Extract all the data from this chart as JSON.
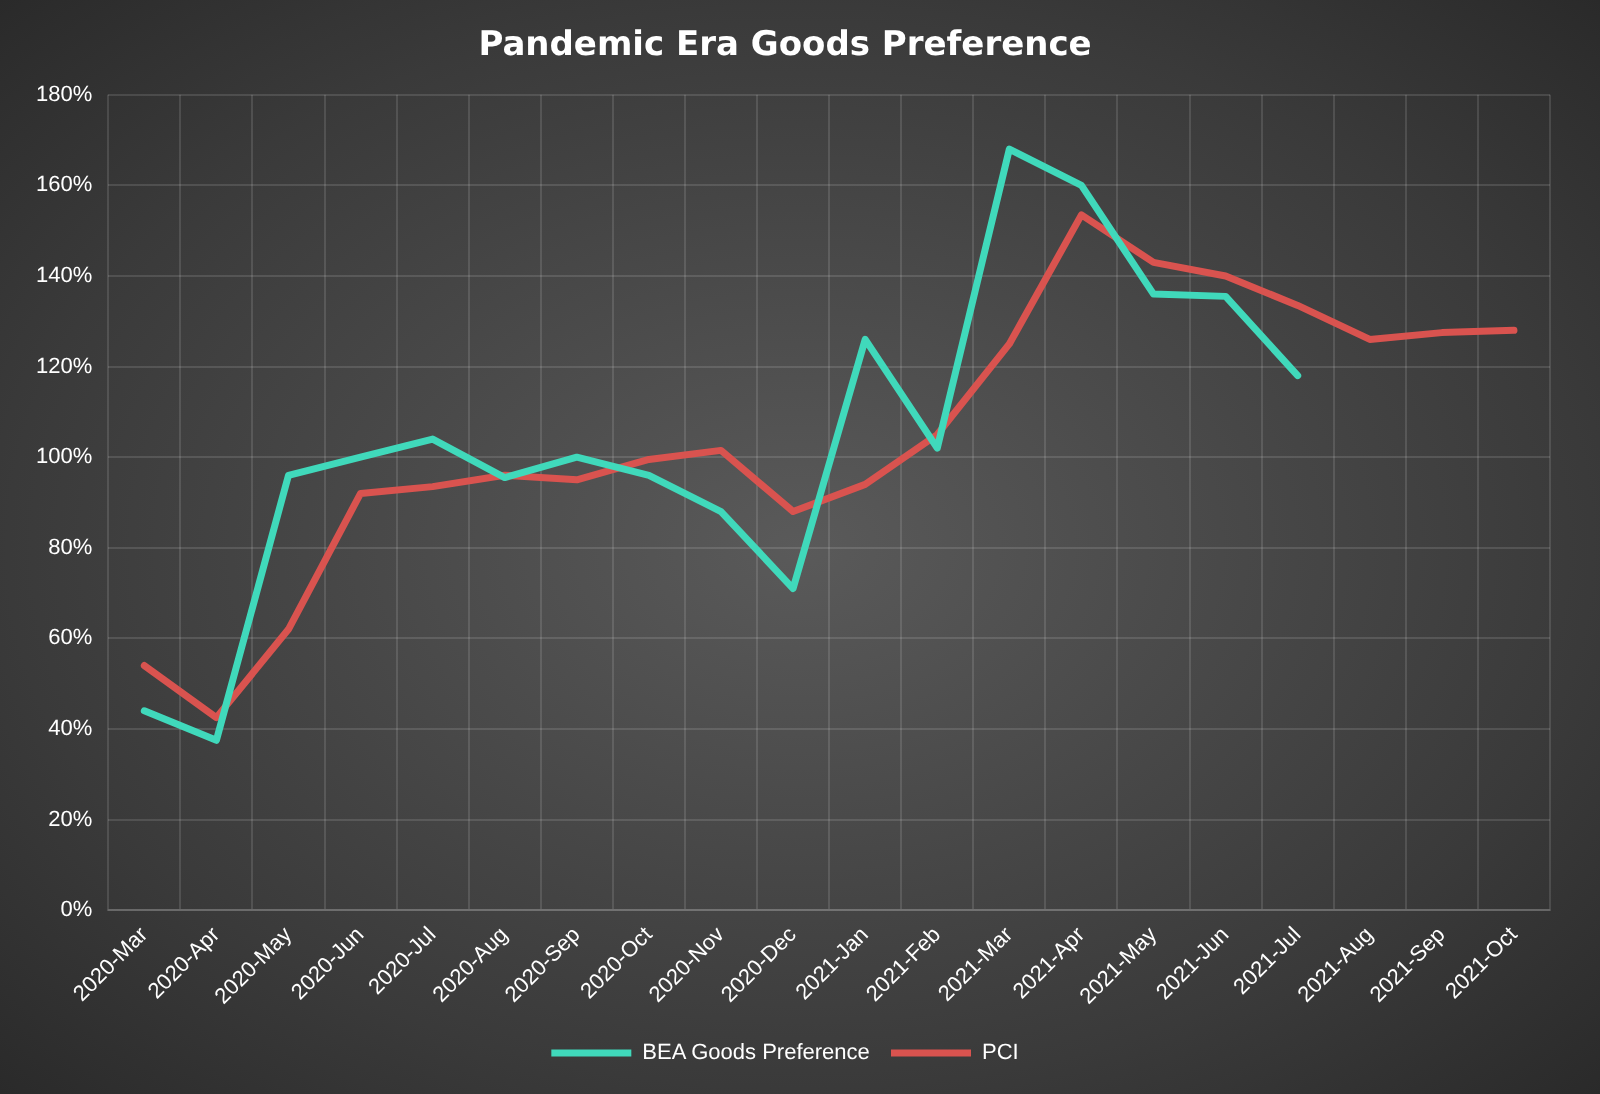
{
  "chart_data": {
    "type": "line",
    "title": "Pandemic Era Goods Preference",
    "categories": [
      "2020-Mar",
      "2020-Apr",
      "2020-May",
      "2020-Jun",
      "2020-Jul",
      "2020-Aug",
      "2020-Sep",
      "2020-Oct",
      "2020-Nov",
      "2020-Dec",
      "2021-Jan",
      "2021-Feb",
      "2021-Mar",
      "2021-Apr",
      "2021-May",
      "2021-Jun",
      "2021-Jul",
      "2021-Aug",
      "2021-Sep",
      "2021-Oct"
    ],
    "series": [
      {
        "name": "BEA Goods Preference",
        "color": "#40d9bb",
        "values": [
          44,
          37.5,
          96,
          100,
          104,
          95.5,
          100,
          96,
          88,
          71,
          126,
          102,
          168,
          160,
          136,
          135.5,
          118,
          null,
          null,
          null
        ]
      },
      {
        "name": "PCI",
        "color": "#d9534f",
        "values": [
          54,
          42.5,
          62,
          92,
          93.5,
          96,
          95,
          99.5,
          101.5,
          88,
          94,
          105,
          125,
          153.5,
          143,
          140,
          133.5,
          126,
          127.5,
          128
        ]
      }
    ],
    "ylim": [
      0,
      180
    ],
    "yticks": [
      {
        "value": 0,
        "label": "0%"
      },
      {
        "value": 20,
        "label": "20%"
      },
      {
        "value": 40,
        "label": "40%"
      },
      {
        "value": 60,
        "label": "60%"
      },
      {
        "value": 80,
        "label": "80%"
      },
      {
        "value": 100,
        "label": "100%"
      },
      {
        "value": 120,
        "label": "120%"
      },
      {
        "value": 140,
        "label": "140%"
      },
      {
        "value": 160,
        "label": "160%"
      },
      {
        "value": 180,
        "label": "180%"
      }
    ],
    "grid": true,
    "legend": "bottom",
    "marker": "none",
    "line_style": "solid"
  }
}
